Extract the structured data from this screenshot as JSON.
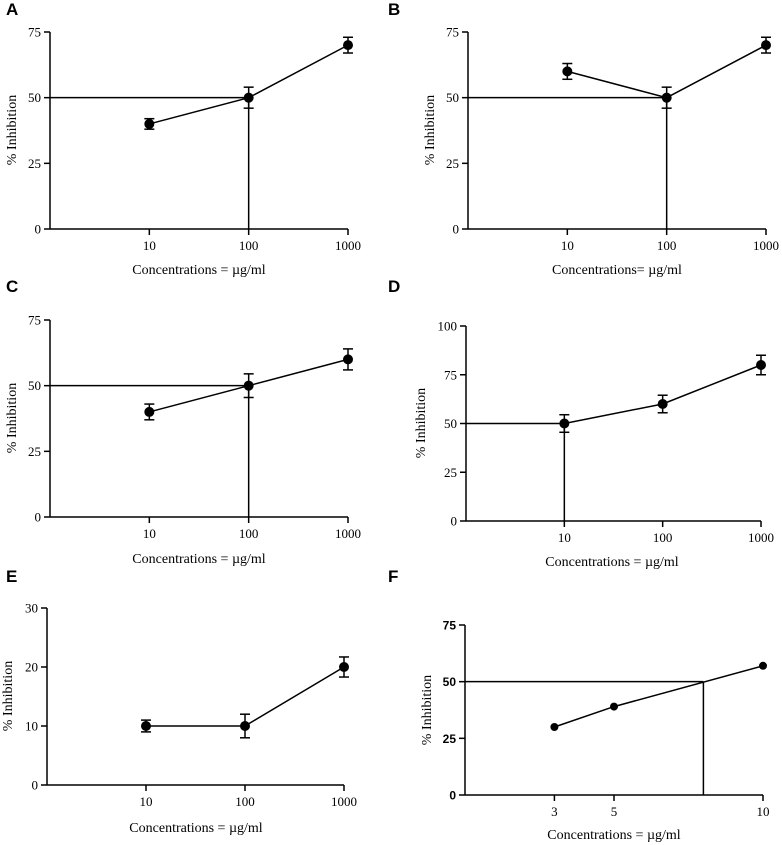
{
  "chart_data": [
    {
      "panel": "A",
      "type": "line",
      "xscale": "log",
      "xlim": [
        1,
        1000
      ],
      "ylim": [
        0,
        75
      ],
      "xticks": [
        "10",
        "100",
        "1000"
      ],
      "yticks": [
        "0",
        "25",
        "50",
        "75"
      ],
      "xlabel": "Concentrations = µg/ml",
      "ylabel": "% Inhibition",
      "series": [
        {
          "name": "inhibition",
          "x": [
            10,
            100,
            1000
          ],
          "y": [
            40,
            50,
            70
          ],
          "err": [
            2,
            4,
            3
          ]
        }
      ],
      "ic50": {
        "x": 100,
        "y": 50
      }
    },
    {
      "panel": "B",
      "type": "line",
      "xscale": "log",
      "xlim": [
        1,
        1000
      ],
      "ylim": [
        0,
        75
      ],
      "xticks": [
        "10",
        "100",
        "1000"
      ],
      "yticks": [
        "0",
        "25",
        "50",
        "75"
      ],
      "xlabel": "Concentrations= µg/ml",
      "ylabel": "% Inhibition",
      "series": [
        {
          "name": "inhibition",
          "x": [
            10,
            100,
            1000
          ],
          "y": [
            60,
            50,
            70
          ],
          "err": [
            3,
            4,
            3
          ]
        }
      ],
      "ic50": {
        "x": 100,
        "y": 50
      }
    },
    {
      "panel": "C",
      "type": "line",
      "xscale": "log",
      "xlim": [
        1,
        1000
      ],
      "ylim": [
        0,
        75
      ],
      "xticks": [
        "10",
        "100",
        "1000"
      ],
      "yticks": [
        "0",
        "25",
        "50",
        "75"
      ],
      "xlabel": "Concentrations = µg/ml",
      "ylabel": "% Inhibition",
      "series": [
        {
          "name": "inhibition",
          "x": [
            10,
            100,
            1000
          ],
          "y": [
            40,
            50,
            60
          ],
          "err": [
            3,
            4.5,
            4
          ]
        }
      ],
      "ic50": {
        "x": 100,
        "y": 50
      }
    },
    {
      "panel": "D",
      "type": "line",
      "xscale": "log",
      "xlim": [
        1,
        1000
      ],
      "ylim": [
        0,
        100
      ],
      "xticks": [
        "10",
        "100",
        "1000"
      ],
      "yticks": [
        "0",
        "25",
        "50",
        "75",
        "100"
      ],
      "xlabel": "Concentrations = µg/ml",
      "ylabel": "% Inhibition",
      "series": [
        {
          "name": "inhibition",
          "x": [
            10,
            100,
            1000
          ],
          "y": [
            50,
            60,
            80
          ],
          "err": [
            4.5,
            4.5,
            5
          ]
        }
      ],
      "ic50": {
        "x": 10,
        "y": 50
      }
    },
    {
      "panel": "E",
      "type": "line",
      "xscale": "log",
      "xlim": [
        1,
        1000
      ],
      "ylim": [
        0,
        30
      ],
      "xticks": [
        "10",
        "100",
        "1000"
      ],
      "yticks": [
        "0",
        "10",
        "20",
        "30"
      ],
      "xlabel": "Concentrations = µg/ml",
      "ylabel": "% Inhibition",
      "series": [
        {
          "name": "inhibition",
          "x": [
            10,
            100,
            1000
          ],
          "y": [
            10,
            10,
            20
          ],
          "err": [
            1,
            2,
            1.7
          ]
        }
      ],
      "ic50": null
    },
    {
      "panel": "F",
      "type": "line",
      "xscale": "linear",
      "xlim": [
        0,
        10
      ],
      "ylim": [
        0,
        75
      ],
      "xticks": [
        "3",
        "5",
        "10"
      ],
      "yticks": [
        "0",
        "25",
        "50",
        "75"
      ],
      "xlabel": "Concentrations = µg/ml",
      "ylabel": "% Inhibition",
      "series": [
        {
          "name": "inhibition",
          "x": [
            3,
            5,
            10
          ],
          "y": [
            30,
            39,
            57
          ],
          "err": [
            0,
            0,
            0
          ]
        }
      ],
      "ic50": {
        "x": 8,
        "y": 50
      }
    }
  ]
}
